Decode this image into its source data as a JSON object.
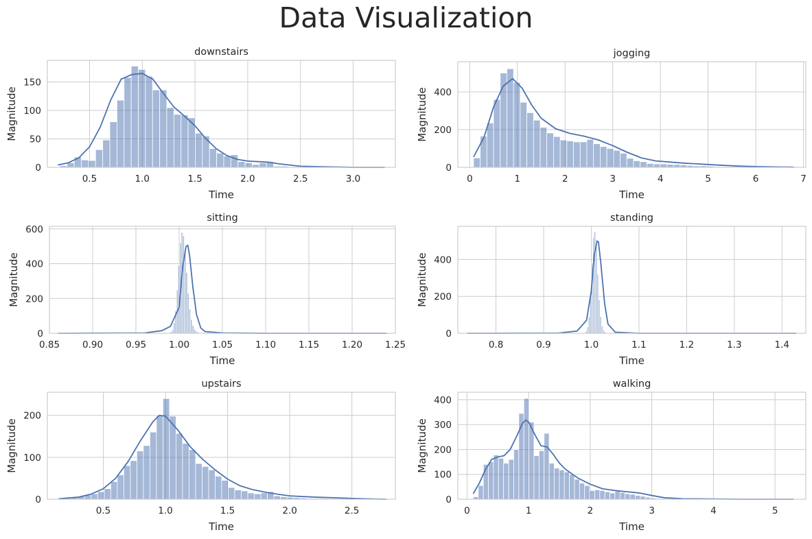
{
  "title": "Data Visualization",
  "chart_data": [
    {
      "type": "bar",
      "title": "downstairs",
      "xlabel": "Time",
      "ylabel": "Magnitude",
      "xlim": [
        0.1,
        3.4
      ],
      "ylim": [
        0,
        188
      ],
      "xticks": [
        0.5,
        1.0,
        1.5,
        2.0,
        2.5,
        3.0
      ],
      "yticks": [
        0,
        50,
        100,
        150
      ],
      "bins": {
        "start": 0.22,
        "width": 0.0675,
        "values": [
          3,
          8,
          18,
          13,
          12,
          31,
          48,
          80,
          118,
          158,
          178,
          172,
          160,
          136,
          136,
          105,
          93,
          92,
          87,
          60,
          55,
          33,
          25,
          20,
          22,
          10,
          8,
          5,
          8,
          10,
          2,
          2,
          1,
          1,
          1,
          0,
          0,
          0,
          0,
          0,
          0,
          0,
          0,
          0,
          0,
          1
        ]
      },
      "kde": {
        "x": [
          0.2,
          0.3,
          0.4,
          0.5,
          0.6,
          0.7,
          0.8,
          0.9,
          1.0,
          1.1,
          1.2,
          1.3,
          1.4,
          1.5,
          1.6,
          1.7,
          1.8,
          1.9,
          2.0,
          2.1,
          2.2,
          2.3,
          2.5,
          2.7,
          3.0,
          3.3
        ],
        "y": [
          4,
          8,
          17,
          36,
          70,
          118,
          155,
          163,
          165,
          155,
          130,
          106,
          90,
          73,
          51,
          33,
          21,
          14,
          11,
          10,
          9,
          6,
          2,
          1,
          0,
          0
        ]
      }
    },
    {
      "type": "bar",
      "title": "jogging",
      "xlabel": "Time",
      "ylabel": "Magnitude",
      "xlim": [
        -0.25,
        7.05
      ],
      "ylim": [
        0,
        560
      ],
      "xticks": [
        0,
        1,
        2,
        3,
        4,
        5,
        6,
        7
      ],
      "yticks": [
        0,
        200,
        400
      ],
      "bins": {
        "start": 0.08,
        "width": 0.1398,
        "values": [
          50,
          165,
          235,
          360,
          500,
          523,
          450,
          345,
          290,
          250,
          212,
          182,
          163,
          145,
          140,
          135,
          135,
          148,
          125,
          110,
          100,
          90,
          75,
          48,
          35,
          30,
          20,
          18,
          18,
          16,
          15,
          13,
          10,
          8,
          8,
          6,
          4,
          3,
          2,
          2,
          1,
          1,
          1,
          1,
          0,
          0,
          1,
          0
        ]
      },
      "kde": {
        "x": [
          0.08,
          0.3,
          0.5,
          0.7,
          0.9,
          1.1,
          1.3,
          1.5,
          1.8,
          2.1,
          2.4,
          2.7,
          3.0,
          3.3,
          3.6,
          3.9,
          4.2,
          4.5,
          4.8,
          5.2,
          5.6,
          6.0,
          6.4,
          6.8
        ],
        "y": [
          55,
          160,
          320,
          430,
          470,
          420,
          330,
          260,
          205,
          180,
          165,
          145,
          115,
          80,
          50,
          34,
          28,
          22,
          18,
          12,
          7,
          4,
          2,
          1
        ]
      }
    },
    {
      "type": "bar",
      "title": "sitting",
      "xlabel": "Time",
      "ylabel": "Magnitude",
      "xlim": [
        0.85,
        1.25
      ],
      "ylim": [
        0,
        615
      ],
      "xticks": [
        0.85,
        0.9,
        0.95,
        1.0,
        1.05,
        1.1,
        1.15,
        1.2,
        1.25
      ],
      "yticks": [
        0,
        200,
        400,
        600
      ],
      "bins": {
        "start": 0.988,
        "width": 0.0018,
        "values": [
          3,
          8,
          20,
          60,
          130,
          250,
          390,
          520,
          580,
          560,
          470,
          350,
          230,
          140,
          80,
          45,
          25,
          14,
          8,
          4,
          2,
          1
        ]
      },
      "kde": {
        "x": [
          0.86,
          0.96,
          0.98,
          0.99,
          1.0,
          1.004,
          1.008,
          1.01,
          1.012,
          1.016,
          1.02,
          1.025,
          1.03,
          1.05,
          1.1,
          1.24
        ],
        "y": [
          0,
          2,
          15,
          40,
          150,
          380,
          500,
          505,
          450,
          260,
          110,
          30,
          10,
          2,
          0,
          0
        ]
      }
    },
    {
      "type": "bar",
      "title": "standing",
      "xlabel": "Time",
      "ylabel": "Magnitude",
      "xlim": [
        0.72,
        1.45
      ],
      "ylim": [
        0,
        580
      ],
      "xticks": [
        0.8,
        0.9,
        1.0,
        1.1,
        1.2,
        1.3,
        1.4
      ],
      "yticks": [
        0,
        200,
        400
      ],
      "bins": {
        "start": 0.985,
        "width": 0.003,
        "values": [
          4,
          12,
          35,
          90,
          200,
          380,
          520,
          550,
          470,
          320,
          180,
          90,
          40,
          18,
          8,
          3,
          1
        ]
      },
      "kde": {
        "x": [
          0.74,
          0.93,
          0.97,
          0.99,
          1.0,
          1.006,
          1.012,
          1.015,
          1.02,
          1.028,
          1.035,
          1.05,
          1.1,
          1.43
        ],
        "y": [
          0,
          1,
          12,
          70,
          230,
          420,
          500,
          495,
          380,
          160,
          50,
          6,
          0,
          0
        ]
      }
    },
    {
      "type": "bar",
      "title": "upstairs",
      "xlabel": "Time",
      "ylabel": "Magnitude",
      "xlim": [
        0.05,
        2.85
      ],
      "ylim": [
        0,
        255
      ],
      "xticks": [
        0.5,
        1.0,
        1.5,
        2.0,
        2.5
      ],
      "yticks": [
        0,
        100,
        200
      ],
      "bins": {
        "start": 0.14,
        "width": 0.0525,
        "values": [
          1,
          2,
          4,
          7,
          10,
          13,
          18,
          25,
          42,
          58,
          80,
          92,
          115,
          128,
          160,
          200,
          240,
          198,
          157,
          133,
          118,
          85,
          78,
          70,
          55,
          45,
          28,
          22,
          20,
          15,
          13,
          15,
          18,
          8,
          6,
          5,
          4,
          3,
          2,
          2,
          2,
          1,
          1,
          1,
          1,
          1,
          1,
          1,
          1,
          1
        ]
      },
      "kde": {
        "x": [
          0.14,
          0.3,
          0.4,
          0.5,
          0.6,
          0.7,
          0.8,
          0.9,
          0.95,
          1.0,
          1.1,
          1.2,
          1.3,
          1.4,
          1.5,
          1.6,
          1.7,
          1.8,
          1.9,
          2.0,
          2.2,
          2.4,
          2.6,
          2.78
        ],
        "y": [
          1,
          5,
          12,
          25,
          50,
          90,
          140,
          185,
          200,
          198,
          165,
          125,
          95,
          70,
          48,
          32,
          23,
          17,
          12,
          8,
          5,
          3,
          1,
          0
        ]
      }
    },
    {
      "type": "bar",
      "title": "walking",
      "xlabel": "Time",
      "ylabel": "Magnitude",
      "xlim": [
        -0.15,
        5.5
      ],
      "ylim": [
        0,
        430
      ],
      "xticks": [
        0,
        1,
        2,
        3,
        4,
        5
      ],
      "yticks": [
        0,
        100,
        200,
        300,
        400
      ],
      "bins": {
        "start": 0.1,
        "width": 0.0822,
        "values": [
          10,
          55,
          140,
          150,
          178,
          165,
          145,
          160,
          200,
          345,
          405,
          310,
          175,
          195,
          265,
          145,
          125,
          118,
          110,
          100,
          80,
          65,
          55,
          35,
          38,
          35,
          30,
          25,
          32,
          27,
          22,
          20,
          15,
          12,
          8,
          5,
          3,
          2,
          2,
          1,
          1,
          1,
          1,
          1,
          1,
          0,
          0,
          0,
          0,
          0,
          0,
          0,
          0,
          0,
          0,
          0,
          0,
          0,
          0,
          0,
          0,
          0,
          1
        ]
      },
      "kde": {
        "x": [
          0.1,
          0.2,
          0.3,
          0.4,
          0.5,
          0.6,
          0.7,
          0.8,
          0.9,
          0.95,
          1.0,
          1.1,
          1.2,
          1.3,
          1.4,
          1.5,
          1.6,
          1.8,
          2.0,
          2.2,
          2.4,
          2.6,
          2.8,
          3.0,
          3.2,
          3.5,
          4.0,
          4.5,
          5.0,
          5.3
        ],
        "y": [
          22,
          65,
          120,
          160,
          170,
          175,
          200,
          250,
          305,
          318,
          310,
          260,
          215,
          210,
          180,
          145,
          120,
          85,
          60,
          42,
          35,
          30,
          25,
          15,
          6,
          2,
          1,
          0,
          0,
          0
        ]
      }
    }
  ]
}
